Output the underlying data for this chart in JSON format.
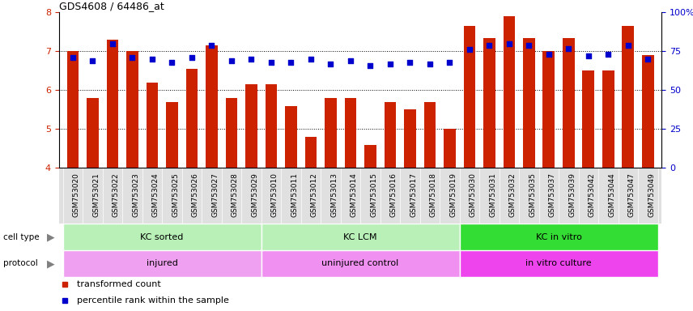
{
  "title": "GDS4608 / 64486_at",
  "samples": [
    "GSM753020",
    "GSM753021",
    "GSM753022",
    "GSM753023",
    "GSM753024",
    "GSM753025",
    "GSM753026",
    "GSM753027",
    "GSM753028",
    "GSM753029",
    "GSM753010",
    "GSM753011",
    "GSM753012",
    "GSM753013",
    "GSM753014",
    "GSM753015",
    "GSM753016",
    "GSM753017",
    "GSM753018",
    "GSM753019",
    "GSM753030",
    "GSM753031",
    "GSM753032",
    "GSM753035",
    "GSM753037",
    "GSM753039",
    "GSM753042",
    "GSM753044",
    "GSM753047",
    "GSM753049"
  ],
  "bar_values": [
    7.0,
    5.8,
    7.3,
    7.0,
    6.2,
    5.7,
    6.55,
    7.15,
    5.8,
    6.15,
    6.15,
    5.6,
    4.8,
    5.8,
    5.8,
    4.6,
    5.7,
    5.5,
    5.7,
    5.0,
    7.65,
    7.35,
    7.9,
    7.35,
    7.0,
    7.35,
    6.5,
    6.5,
    7.65,
    6.9
  ],
  "blue_values": [
    71,
    69,
    80,
    71,
    70,
    68,
    71,
    79,
    69,
    70,
    68,
    68,
    70,
    67,
    69,
    66,
    67,
    68,
    67,
    68,
    76,
    79,
    80,
    79,
    73,
    77,
    72,
    73,
    79,
    70
  ],
  "cell_type_groups": [
    {
      "label": "KC sorted",
      "start": 0,
      "end": 9,
      "color": "#b8f0b8"
    },
    {
      "label": "KC LCM",
      "start": 10,
      "end": 19,
      "color": "#b8f0b8"
    },
    {
      "label": "KC in vitro",
      "start": 20,
      "end": 29,
      "color": "#33dd33"
    }
  ],
  "protocol_groups": [
    {
      "label": "injured",
      "start": 0,
      "end": 9,
      "color": "#f0a0f0"
    },
    {
      "label": "uninjured control",
      "start": 10,
      "end": 19,
      "color": "#f090f0"
    },
    {
      "label": "in vitro culture",
      "start": 20,
      "end": 29,
      "color": "#ee44ee"
    }
  ],
  "ylim_left": [
    4.0,
    8.0
  ],
  "ylim_right": [
    0,
    100
  ],
  "bar_color": "#cc2200",
  "dot_color": "#0000cc",
  "yticks_left": [
    4,
    5,
    6,
    7,
    8
  ],
  "yticks_right": [
    0,
    25,
    50,
    75,
    100
  ],
  "legend_items": [
    {
      "label": "transformed count",
      "color": "#cc2200"
    },
    {
      "label": "percentile rank within the sample",
      "color": "#0000cc"
    }
  ]
}
